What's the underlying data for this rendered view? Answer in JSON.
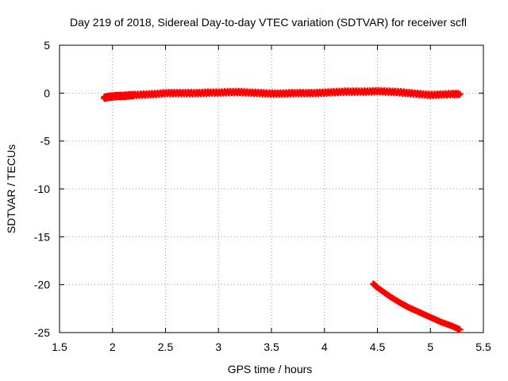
{
  "chart_data": {
    "type": "scatter",
    "title": "Day 219 of 2018, Sidereal Day-to-day VTEC variation (SDTVAR) for receiver scfl",
    "xlabel": "GPS time / hours",
    "ylabel": "SDTVAR / TECUs",
    "xlim": [
      1.5,
      5.5
    ],
    "ylim": [
      -25,
      5
    ],
    "xticks": [
      1.5,
      2,
      2.5,
      3,
      3.5,
      4,
      4.5,
      5,
      5.5
    ],
    "xtick_labels": [
      "1.5",
      "2",
      "2.5",
      "3",
      "3.5",
      "4",
      "4.5",
      "5",
      "5.5"
    ],
    "yticks": [
      5,
      0,
      -5,
      -10,
      -15,
      -20,
      -25
    ],
    "ytick_labels": [
      "5",
      "0",
      "-5",
      "-10",
      "-15",
      "-20",
      "-25"
    ],
    "grid": true,
    "marker": "plus",
    "color": "#ff0000",
    "series": [
      {
        "name": "main",
        "x": [
          1.92,
          1.96,
          2.0,
          2.05,
          2.1,
          2.15,
          2.2,
          2.3,
          2.4,
          2.5,
          2.6,
          2.7,
          2.8,
          2.9,
          3.0,
          3.1,
          3.2,
          3.3,
          3.4,
          3.5,
          3.6,
          3.7,
          3.8,
          3.9,
          4.0,
          4.1,
          4.2,
          4.3,
          4.4,
          4.5,
          4.6,
          4.7,
          4.8,
          4.9,
          5.0,
          5.1,
          5.2,
          5.28
        ],
        "y": [
          -0.5,
          -0.4,
          -0.35,
          -0.3,
          -0.3,
          -0.25,
          -0.2,
          -0.15,
          -0.1,
          0.0,
          0.0,
          0.0,
          0.0,
          0.05,
          0.05,
          0.1,
          0.1,
          0.05,
          0.0,
          -0.05,
          -0.05,
          0.0,
          0.0,
          0.0,
          0.05,
          0.1,
          0.15,
          0.15,
          0.15,
          0.2,
          0.15,
          0.1,
          0.0,
          -0.1,
          -0.2,
          -0.15,
          -0.1,
          -0.1
        ]
      },
      {
        "name": "secondary",
        "x": [
          4.46,
          4.5,
          4.6,
          4.7,
          4.8,
          4.9,
          5.0,
          5.1,
          5.2,
          5.28
        ],
        "y": [
          -19.9,
          -20.3,
          -21.1,
          -21.8,
          -22.4,
          -22.9,
          -23.4,
          -23.9,
          -24.3,
          -24.7
        ]
      }
    ]
  }
}
